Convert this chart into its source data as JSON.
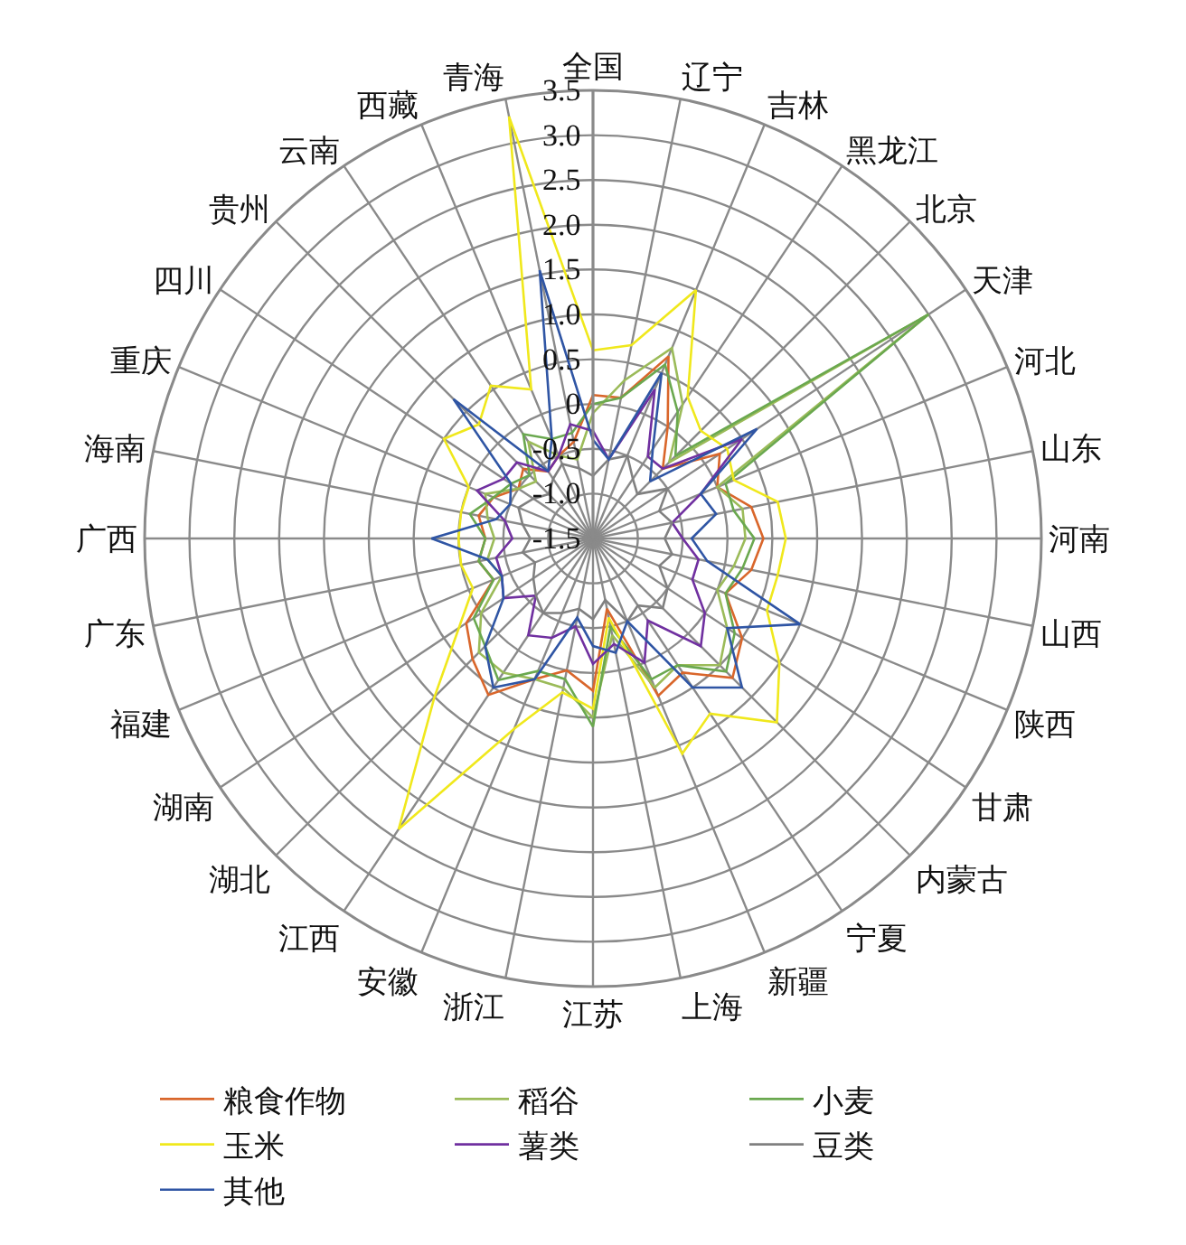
{
  "chart_data": {
    "type": "radar",
    "categories": [
      "全国",
      "辽宁",
      "吉林",
      "黑龙江",
      "北京",
      "天津",
      "河北",
      "山东",
      "河南",
      "山西",
      "陕西",
      "甘肃",
      "内蒙古",
      "宁夏",
      "新疆",
      "上海",
      "江苏",
      "浙江",
      "安徽",
      "江西",
      "湖北",
      "湖南",
      "福建",
      "广东",
      "广西",
      "海南",
      "重庆",
      "四川",
      "贵州",
      "云南",
      "西藏",
      "青海"
    ],
    "ylim": [
      -1.5,
      3.5
    ],
    "yticks": [
      {
        "value": -1.5,
        "label": "-1.5"
      },
      {
        "value": -1,
        "label": "-1.0"
      },
      {
        "value": -0.5,
        "label": "-0.5"
      },
      {
        "value": 0,
        "label": "0"
      },
      {
        "value": 0.5,
        "label": "0.5"
      },
      {
        "value": 1,
        "label": "1.0"
      },
      {
        "value": 1.5,
        "label": "1.5"
      },
      {
        "value": 2,
        "label": "2.0"
      },
      {
        "value": 2.5,
        "label": "2.5"
      },
      {
        "value": 3,
        "label": "3.0"
      },
      {
        "value": 3.5,
        "label": "3.5"
      }
    ],
    "grid": true,
    "legend": "bottom",
    "marker": "none",
    "line_style": "solid",
    "series": [
      {
        "name": "粮食作物",
        "color": "#d9662b",
        "values": [
          0.1,
          0.1,
          0.7,
          0.0,
          -0.4,
          0.2,
          0.0,
          0.3,
          0.4,
          0.3,
          0.1,
          0.5,
          0.7,
          0.3,
          0.4,
          -0.7,
          0.2,
          0.0,
          0.2,
          0.6,
          0.4,
          0.2,
          -0.3,
          -0.2,
          -0.3,
          -0.2,
          -0.3,
          -0.5,
          -0.4,
          -0.6,
          -0.5,
          -0.4
        ]
      },
      {
        "name": "稻谷",
        "color": "#9bbb59",
        "values": [
          -0.1,
          0.3,
          0.8,
          0.3,
          -0.3,
          3.0,
          0.0,
          0.2,
          0.2,
          0.1,
          0.0,
          0.3,
          0.5,
          0.2,
          0.3,
          -0.4,
          0.5,
          0.2,
          0.2,
          0.3,
          0.3,
          0.0,
          -0.4,
          -0.3,
          -0.4,
          -0.3,
          -0.2,
          -0.5,
          -0.6,
          -0.2,
          -0.5,
          -0.6
        ]
      },
      {
        "name": "小麦",
        "color": "#6aa84f",
        "values": [
          0.0,
          0.1,
          0.6,
          0.2,
          -0.2,
          3.0,
          0.1,
          0.1,
          0.3,
          0.2,
          0.1,
          0.4,
          0.6,
          0.2,
          0.2,
          -0.5,
          0.6,
          0.1,
          0.1,
          0.4,
          0.2,
          0.1,
          -0.3,
          -0.2,
          -0.3,
          -0.1,
          -0.3,
          -0.4,
          -0.5,
          -0.1,
          -0.3,
          -0.3
        ]
      },
      {
        "name": "玉米",
        "color": "#f0e81c",
        "values": [
          0.6,
          0.7,
          1.5,
          0.4,
          0.2,
          0.3,
          0.2,
          0.6,
          0.65,
          0.6,
          0.6,
          1.0,
          1.4,
          0.85,
          1.1,
          -0.6,
          0.4,
          0.25,
          0.8,
          2.4,
          1.0,
          0.3,
          -0.05,
          0.0,
          0.0,
          0.0,
          0.0,
          0.5,
          0.3,
          0.55,
          0.3,
          3.3
        ]
      },
      {
        "name": "薯类",
        "color": "#7030a0",
        "values": [
          -0.3,
          -0.6,
          0.3,
          -0.4,
          -0.4,
          0.5,
          -0.2,
          -0.6,
          -0.5,
          -0.3,
          -0.3,
          0.0,
          0.2,
          -0.4,
          0.0,
          -0.3,
          -0.1,
          -0.5,
          -0.3,
          -0.2,
          -0.6,
          -0.3,
          -0.4,
          -0.4,
          -0.6,
          -0.5,
          -0.1,
          -0.3,
          -0.3,
          -0.6,
          -0.5,
          -0.2
        ]
      },
      {
        "name": "豆类",
        "color": "#808080",
        "values": [
          -0.8,
          -0.6,
          -0.5,
          -0.7,
          -0.8,
          -0.5,
          -0.7,
          -0.6,
          -0.7,
          -0.6,
          -0.7,
          -0.5,
          -0.4,
          -0.6,
          -0.5,
          -0.8,
          -0.6,
          -0.7,
          -0.6,
          -0.5,
          -0.6,
          -0.7,
          -0.8,
          -0.7,
          -0.8,
          -0.7,
          -0.6,
          -0.7,
          -0.8,
          -0.7,
          -0.6,
          -0.7
        ]
      },
      {
        "name": "其他",
        "color": "#2f55a4",
        "values": [
          -0.4,
          -0.6,
          0.5,
          -0.3,
          -0.6,
          0.7,
          -0.2,
          -0.1,
          -0.4,
          -0.2,
          1.0,
          0.3,
          0.85,
          0.5,
          -0.5,
          -0.2,
          -0.3,
          -0.6,
          0.2,
          0.5,
          0.2,
          -0.3,
          -0.4,
          -0.3,
          0.3,
          -0.4,
          -0.5,
          -0.4,
          0.7,
          -0.6,
          -0.3,
          1.55
        ]
      }
    ]
  }
}
